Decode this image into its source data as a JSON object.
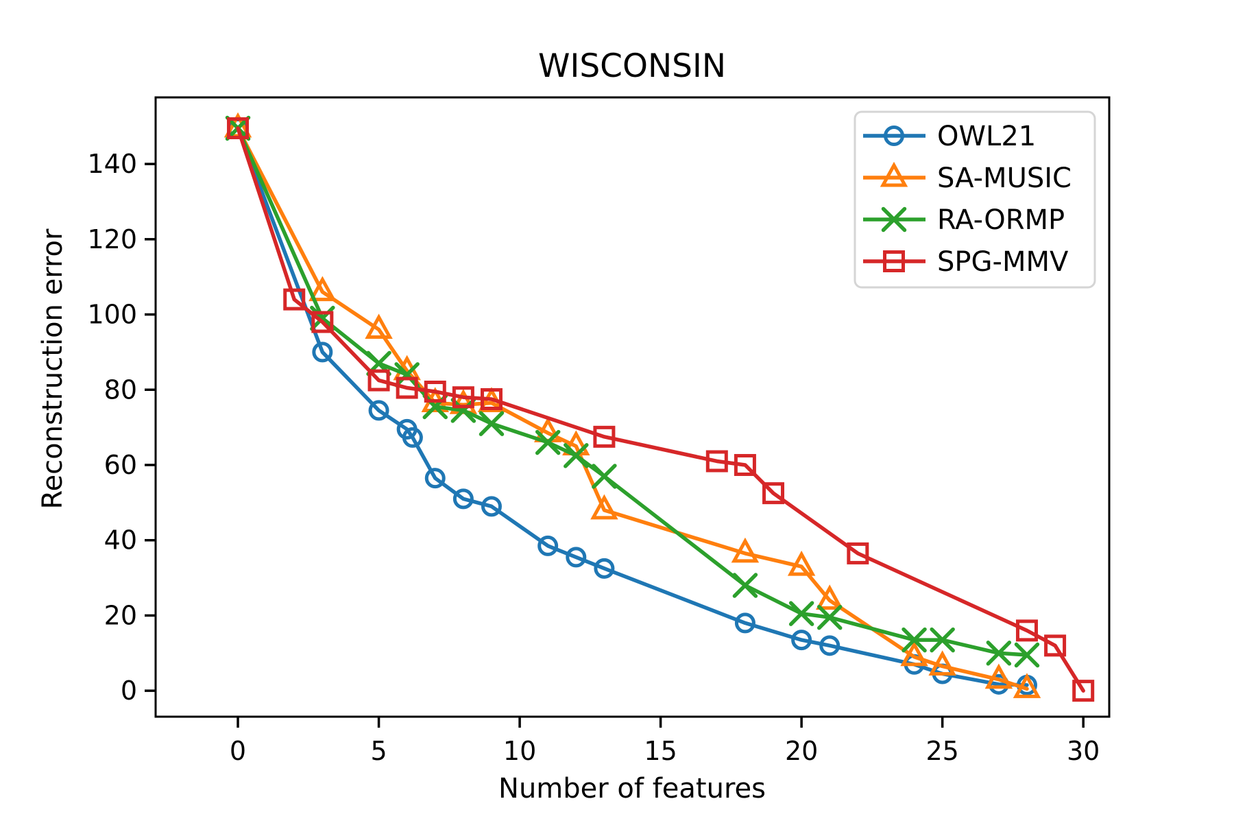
{
  "figure": {
    "title": "WISCONSIN",
    "xlabel": "Number of features",
    "ylabel": "Reconstruction error"
  },
  "chart_data": {
    "type": "line",
    "title": "WISCONSIN",
    "xlabel": "Number of features",
    "ylabel": "Reconstruction error",
    "xlim": [
      -2.92,
      30.92
    ],
    "ylim": [
      -6.9,
      157.7
    ],
    "x_ticks": [
      0,
      5,
      10,
      15,
      20,
      25,
      30
    ],
    "y_ticks": [
      0,
      20,
      40,
      60,
      80,
      100,
      120,
      140
    ],
    "grid": false,
    "legend_position": "upper right",
    "frame_color": "#000000",
    "legend_border_color": "#d5d5d5",
    "series": [
      {
        "name": "OWL21",
        "color": "#1f77b4",
        "marker": "circle",
        "points": [
          [
            0,
            149.5
          ],
          [
            3,
            90
          ],
          [
            5,
            74.5
          ],
          [
            6,
            69.5
          ],
          [
            6.2,
            67.3
          ],
          [
            7,
            56.5
          ],
          [
            8,
            51
          ],
          [
            9,
            49
          ],
          [
            11,
            38.5
          ],
          [
            12,
            35.5
          ],
          [
            13,
            32.5
          ],
          [
            18,
            18
          ],
          [
            20,
            13.5
          ],
          [
            21,
            12
          ],
          [
            24,
            7
          ],
          [
            25,
            4.5
          ],
          [
            27,
            1.7
          ],
          [
            28,
            1.5
          ]
        ]
      },
      {
        "name": "SA-MUSIC",
        "color": "#ff7f0e",
        "marker": "triangle",
        "points": [
          [
            0,
            149.5
          ],
          [
            3,
            106
          ],
          [
            5,
            96
          ],
          [
            6,
            85
          ],
          [
            7,
            76.5
          ],
          [
            8,
            76
          ],
          [
            9,
            76.5
          ],
          [
            11,
            68.5
          ],
          [
            12,
            65
          ],
          [
            13,
            48
          ],
          [
            18,
            36.5
          ],
          [
            20,
            33
          ],
          [
            21,
            24
          ],
          [
            24,
            9
          ],
          [
            25,
            6.5
          ],
          [
            27,
            3
          ],
          [
            28,
            0.5
          ]
        ]
      },
      {
        "name": "RA-ORMP",
        "color": "#2ca02c",
        "marker": "x",
        "points": [
          [
            0,
            149.5
          ],
          [
            3,
            99
          ],
          [
            5,
            87
          ],
          [
            6,
            84
          ],
          [
            7,
            75.5
          ],
          [
            8,
            74.5
          ],
          [
            9,
            71
          ],
          [
            11,
            66
          ],
          [
            12,
            62.5
          ],
          [
            13,
            57
          ],
          [
            18,
            28
          ],
          [
            20,
            20.5
          ],
          [
            21,
            19.5
          ],
          [
            24,
            13.5
          ],
          [
            25,
            13.5
          ],
          [
            27,
            10
          ],
          [
            28,
            9.5
          ]
        ]
      },
      {
        "name": "SPG-MMV",
        "color": "#d62728",
        "marker": "square",
        "points": [
          [
            0,
            149.5
          ],
          [
            2,
            104
          ],
          [
            3,
            98
          ],
          [
            5,
            82.5
          ],
          [
            6,
            80.5
          ],
          [
            7,
            79.5
          ],
          [
            8,
            78
          ],
          [
            9,
            77.5
          ],
          [
            13,
            67.5
          ],
          [
            17,
            61
          ],
          [
            18,
            60
          ],
          [
            19,
            52.5
          ],
          [
            22,
            36.5
          ],
          [
            28,
            16
          ],
          [
            29,
            12
          ],
          [
            30,
            0
          ]
        ]
      }
    ]
  }
}
